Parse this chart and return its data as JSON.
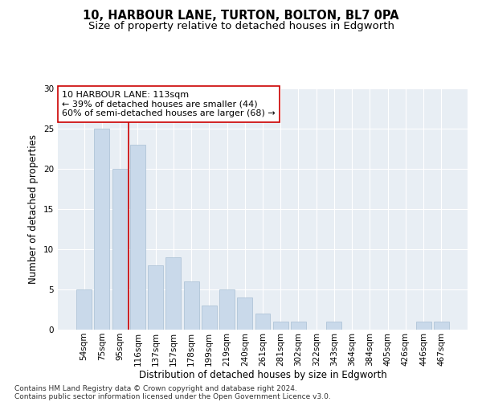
{
  "title_line1": "10, HARBOUR LANE, TURTON, BOLTON, BL7 0PA",
  "title_line2": "Size of property relative to detached houses in Edgworth",
  "xlabel": "Distribution of detached houses by size in Edgworth",
  "ylabel": "Number of detached properties",
  "categories": [
    "54sqm",
    "75sqm",
    "95sqm",
    "116sqm",
    "137sqm",
    "157sqm",
    "178sqm",
    "199sqm",
    "219sqm",
    "240sqm",
    "261sqm",
    "281sqm",
    "302sqm",
    "322sqm",
    "343sqm",
    "364sqm",
    "384sqm",
    "405sqm",
    "426sqm",
    "446sqm",
    "467sqm"
  ],
  "values": [
    5,
    25,
    20,
    23,
    8,
    9,
    6,
    3,
    5,
    4,
    2,
    1,
    1,
    0,
    1,
    0,
    0,
    0,
    0,
    1,
    1
  ],
  "bar_color": "#c9d9ea",
  "bar_edge_color": "#a8bfd4",
  "vline_x": 3.0,
  "vline_color": "#cc0000",
  "annotation_text": "10 HARBOUR LANE: 113sqm\n← 39% of detached houses are smaller (44)\n60% of semi-detached houses are larger (68) →",
  "annotation_box_color": "#ffffff",
  "annotation_box_edge": "#cc0000",
  "ylim": [
    0,
    30
  ],
  "yticks": [
    0,
    5,
    10,
    15,
    20,
    25,
    30
  ],
  "background_color": "#e8eef4",
  "footer_line1": "Contains HM Land Registry data © Crown copyright and database right 2024.",
  "footer_line2": "Contains public sector information licensed under the Open Government Licence v3.0.",
  "title_fontsize": 10.5,
  "subtitle_fontsize": 9.5,
  "axis_label_fontsize": 8.5,
  "tick_fontsize": 7.5,
  "annotation_fontsize": 8,
  "footer_fontsize": 6.5
}
